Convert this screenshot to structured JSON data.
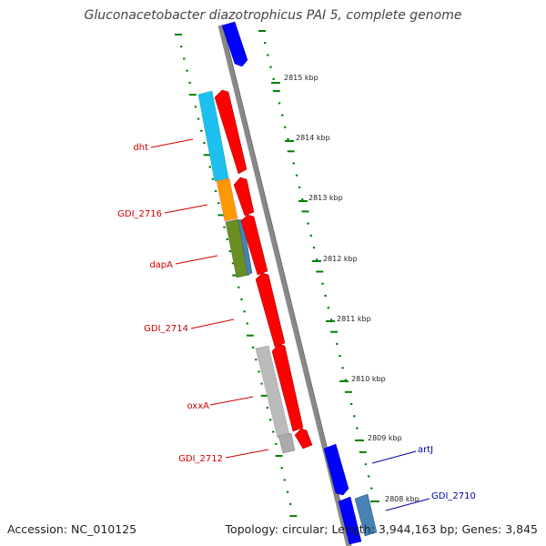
{
  "title": "Gluconacetobacter diazotrophicus PAI 5, complete genome",
  "footer": {
    "accession_label": "Accession:",
    "accession": "NC_010125",
    "topology_label": "Topology:",
    "topology": "circular",
    "length_label": "Length:",
    "length": "3,944,163 bp",
    "genes_label": "Genes:",
    "genes": "3,845"
  },
  "colors": {
    "backbone": "#888888",
    "forward_gene": "#ff0000",
    "reverse_gene": "#0000ff",
    "tick": "#008000",
    "left_label": "#cc0000",
    "right_label": "#0000aa",
    "cyan_feature": "#1ec0f0",
    "orange_feature": "#ff9900",
    "olive_feature": "#6b8e23",
    "steelblue_feature": "#4682b4",
    "grey_feature": "#bbbbbb"
  },
  "scale_labels": [
    "2815 kbp",
    "2814 kbp",
    "2813 kbp",
    "2812 kbp",
    "2811 kbp",
    "2810 kbp",
    "2809 kbp",
    "2808 kbp"
  ],
  "left_gene_labels": [
    "dht",
    "GDI_2716",
    "dapA",
    "GDI_2714",
    "oxxA",
    "GDI_2712"
  ],
  "right_gene_labels": [
    "artJ",
    "GDI_2710"
  ]
}
